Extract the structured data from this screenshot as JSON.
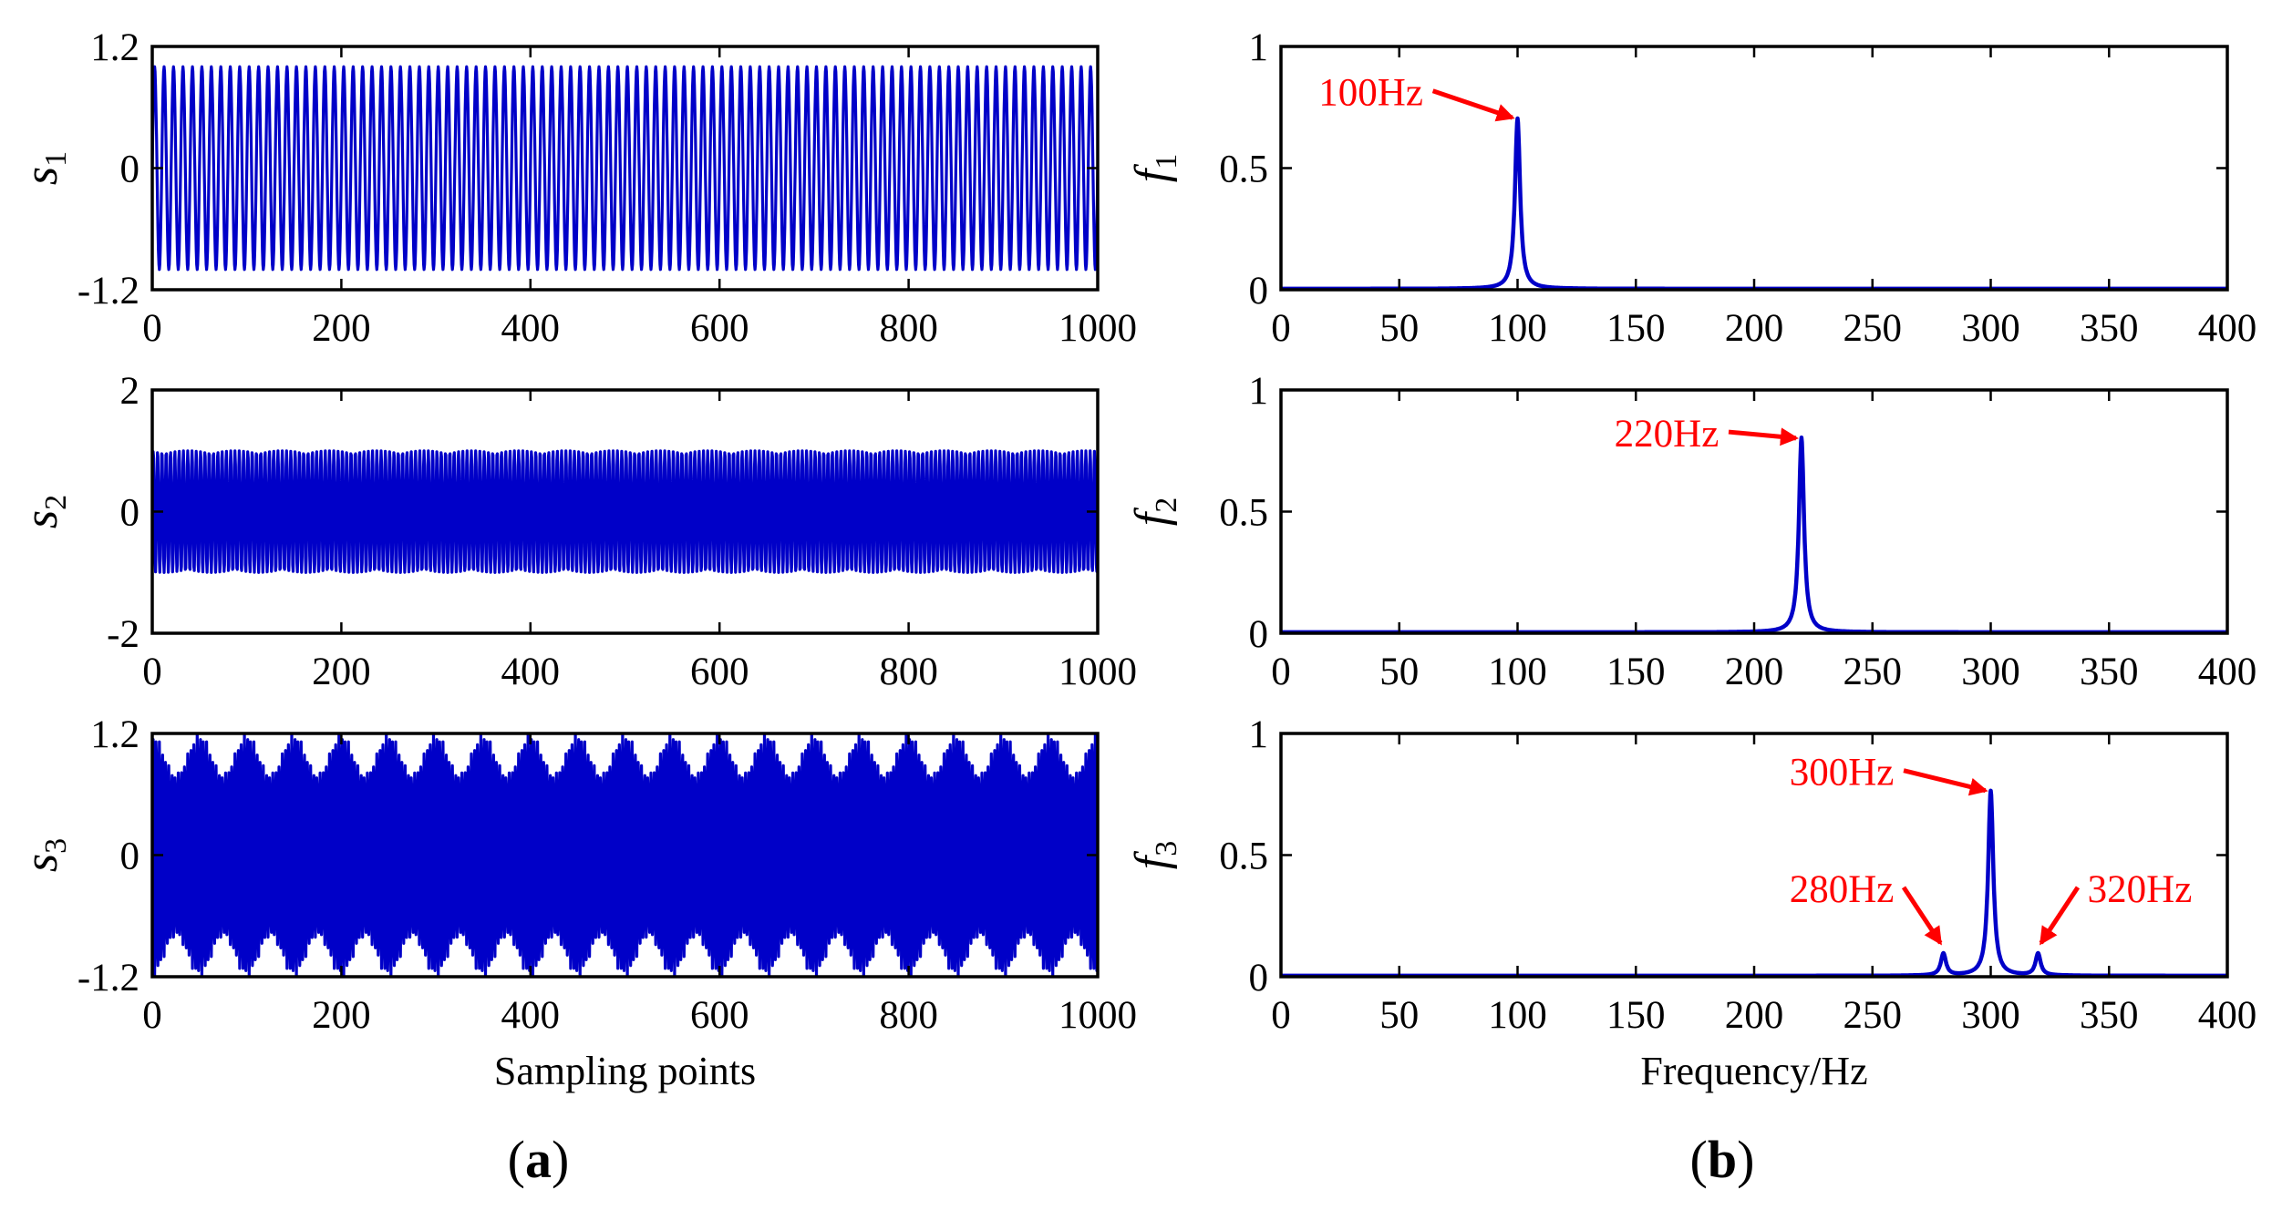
{
  "colors": {
    "signal": "#0000c8",
    "annotation": "#ff0000",
    "axis": "#000000"
  },
  "panel_labels": {
    "a": "a",
    "b": "b"
  },
  "chart_data": [
    {
      "id": "s1",
      "type": "line",
      "panel": "a",
      "row": 0,
      "ylabel_main": "s",
      "ylabel_sub": "1",
      "xlabel": "",
      "xlim": [
        0,
        1000
      ],
      "ylim": [
        -1.2,
        1.2
      ],
      "xticks": [
        0,
        200,
        400,
        600,
        800,
        1000
      ],
      "yticks": [
        -1.2,
        0,
        1.2
      ],
      "ytick_labels": [
        "-1.2",
        "0",
        "1.2"
      ],
      "signal": {
        "components": [
          {
            "amplitude": 1.0,
            "cycles_per_point": 0.1
          }
        ],
        "points": 1000
      }
    },
    {
      "id": "s2",
      "type": "line",
      "panel": "a",
      "row": 1,
      "ylabel_main": "s",
      "ylabel_sub": "2",
      "xlabel": "",
      "xlim": [
        0,
        1000
      ],
      "ylim": [
        -2,
        2
      ],
      "xticks": [
        0,
        200,
        400,
        600,
        800,
        1000
      ],
      "yticks": [
        -2,
        0,
        2
      ],
      "ytick_labels": [
        "-2",
        "0",
        "2"
      ],
      "signal": {
        "components": [
          {
            "amplitude": 1.0,
            "cycles_per_point": 0.22
          }
        ],
        "points": 1000
      }
    },
    {
      "id": "s3",
      "type": "line",
      "panel": "a",
      "row": 2,
      "ylabel_main": "s",
      "ylabel_sub": "3",
      "xlabel": "Sampling points",
      "xlim": [
        0,
        1000
      ],
      "ylim": [
        -1.2,
        1.2
      ],
      "xticks": [
        0,
        200,
        400,
        600,
        800,
        1000
      ],
      "yticks": [
        -1.2,
        0,
        1.2
      ],
      "ytick_labels": [
        "-1.2",
        "0",
        "1.2"
      ],
      "signal": {
        "components": [
          {
            "amplitude": 1.0,
            "cycles_per_point": 0.3
          },
          {
            "amplitude": 0.1,
            "cycles_per_point": 0.28
          },
          {
            "amplitude": 0.1,
            "cycles_per_point": 0.32
          }
        ],
        "points": 1000
      }
    },
    {
      "id": "f1",
      "type": "line",
      "panel": "b",
      "row": 0,
      "ylabel_main": "f",
      "ylabel_sub": "1",
      "xlabel": "",
      "xlim": [
        0,
        400
      ],
      "ylim": [
        0,
        1
      ],
      "xticks": [
        0,
        50,
        100,
        150,
        200,
        250,
        300,
        350,
        400
      ],
      "yticks": [
        0,
        0.5,
        1
      ],
      "ytick_labels": [
        "0",
        "0.5",
        "1"
      ],
      "peaks": [
        {
          "freq": 100,
          "amp": 0.7
        }
      ],
      "annotations": [
        {
          "text": "100Hz",
          "freq": 100,
          "amp": 0.7,
          "text_freq": 38,
          "text_amp": 0.78
        }
      ]
    },
    {
      "id": "f2",
      "type": "line",
      "panel": "b",
      "row": 1,
      "ylabel_main": "f",
      "ylabel_sub": "2",
      "xlabel": "",
      "xlim": [
        0,
        400
      ],
      "ylim": [
        0,
        1
      ],
      "xticks": [
        0,
        50,
        100,
        150,
        200,
        250,
        300,
        350,
        400
      ],
      "yticks": [
        0,
        0.5,
        1
      ],
      "ytick_labels": [
        "0",
        "0.5",
        "1"
      ],
      "peaks": [
        {
          "freq": 220,
          "amp": 0.8
        }
      ],
      "annotations": [
        {
          "text": "220Hz",
          "freq": 220,
          "amp": 0.8,
          "text_freq": 163,
          "text_amp": 0.79
        }
      ]
    },
    {
      "id": "f3",
      "type": "line",
      "panel": "b",
      "row": 2,
      "ylabel_main": "f",
      "ylabel_sub": "3",
      "xlabel": "Frequency/Hz",
      "xlim": [
        0,
        400
      ],
      "ylim": [
        0,
        1
      ],
      "xticks": [
        0,
        50,
        100,
        150,
        200,
        250,
        300,
        350,
        400
      ],
      "yticks": [
        0,
        0.5,
        1
      ],
      "ytick_labels": [
        "0",
        "0.5",
        "1"
      ],
      "peaks": [
        {
          "freq": 280,
          "amp": 0.09
        },
        {
          "freq": 300,
          "amp": 0.76
        },
        {
          "freq": 320,
          "amp": 0.09
        }
      ],
      "annotations": [
        {
          "text": "300Hz",
          "freq": 300,
          "amp": 0.76,
          "text_freq": 237,
          "text_amp": 0.81
        },
        {
          "text": "280Hz",
          "freq": 280,
          "amp": 0.12,
          "text_freq": 237,
          "text_amp": 0.33
        },
        {
          "text": "320Hz",
          "freq": 320,
          "amp": 0.12,
          "text_freq": 363,
          "text_amp": 0.33
        }
      ]
    }
  ]
}
